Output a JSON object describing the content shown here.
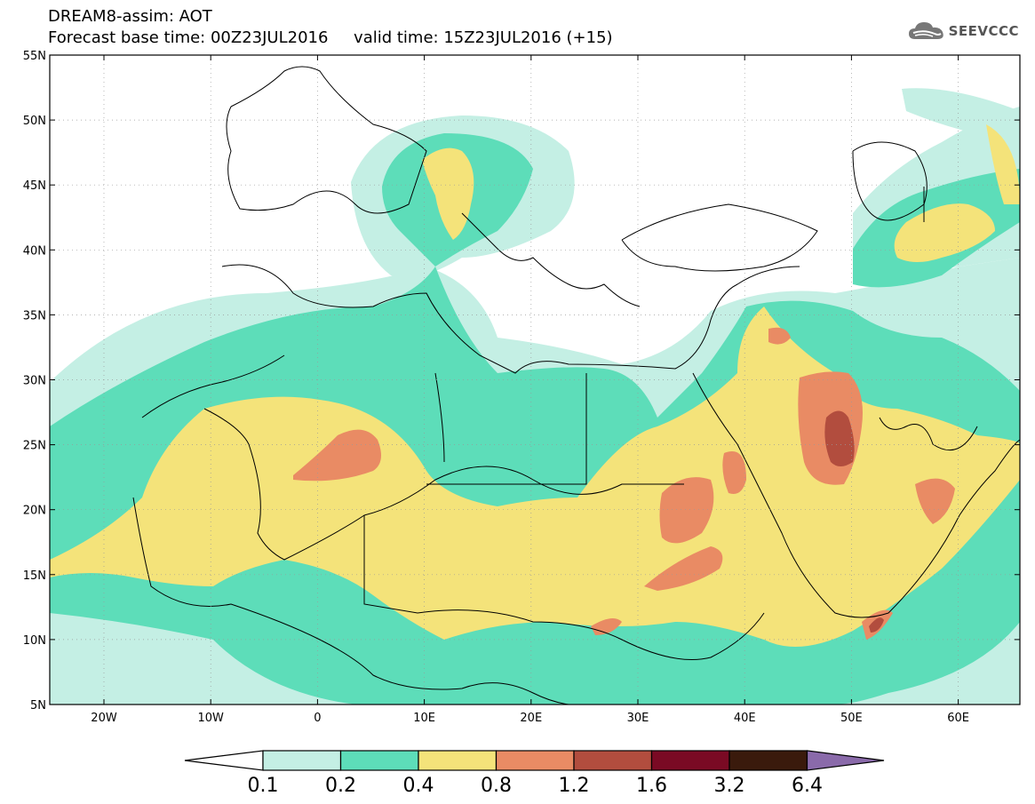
{
  "header": {
    "line1": "DREAM8-assim: AOT",
    "line2": "Forecast base time: 00Z23JUL2016     valid time: 15Z23JUL2016 (+15)"
  },
  "logo": {
    "text": "SEEVCCC",
    "icon": "cloud-icon"
  },
  "map": {
    "lat_labels": [
      "55N",
      "50N",
      "45N",
      "40N",
      "35N",
      "30N",
      "25N",
      "20N",
      "15N",
      "10N",
      "5N"
    ],
    "lon_labels": [
      "20W",
      "10W",
      "0",
      "10E",
      "20E",
      "30E",
      "40E",
      "50E",
      "60E"
    ]
  },
  "legend": {
    "colors": [
      "#ffffff",
      "#c4efe4",
      "#5dddb9",
      "#f4e37a",
      "#e98b64",
      "#b24d3e",
      "#7a0a24",
      "#3a1a0c",
      "#8a6aaa"
    ],
    "labels": [
      "0.1",
      "0.2",
      "0.4",
      "0.8",
      "1.2",
      "1.6",
      "3.2",
      "6.4"
    ]
  }
}
